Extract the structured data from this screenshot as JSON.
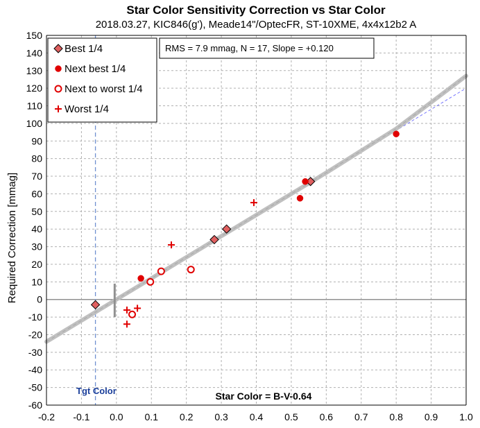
{
  "chart_data": {
    "type": "scatter",
    "title": "Star Color Sensitivity Correction vs Star Color",
    "subtitle": "2018.03.27, KIC846(g'), Meade14\"/OptecFR, ST-10XME, 4x4x12b2 A",
    "xlabel": "Star Color = B-V-0.64",
    "ylabel": "Required Correction [mmag]",
    "xlim": [
      -0.2,
      1.0
    ],
    "ylim": [
      -60,
      150
    ],
    "x_ticks": [
      "-0.2",
      "-0.1",
      "0.0",
      "0.1",
      "0.2",
      "0.3",
      "0.4",
      "0.5",
      "0.6",
      "0.7",
      "0.8",
      "0.9",
      "1.0"
    ],
    "y_ticks": [
      "150",
      "140",
      "130",
      "120",
      "110",
      "100",
      "90",
      "80",
      "70",
      "60",
      "50",
      "40",
      "30",
      "20",
      "10",
      "0",
      "-10",
      "-20",
      "-30",
      "-40",
      "-50",
      "-60"
    ],
    "grid": true,
    "legend_position": "top-left",
    "stats_text": "RMS = 7.9 mmag, N = 17, Slope = +0.120",
    "target_color_label": "Tgt Color",
    "target_color_x": -0.06,
    "colors": {
      "marker_red": "#e00000",
      "diamond_fill": "#e06060",
      "fit_line": "#c0c0c0",
      "linear_line": "#6a6aff",
      "target_line": "#7090d0",
      "target_label": "#1a3e9a"
    },
    "series": [
      {
        "name": "Best 1/4",
        "marker": "diamond",
        "points": [
          [
            -0.06,
            -3
          ],
          [
            0.28,
            34
          ],
          [
            0.315,
            40
          ],
          [
            0.555,
            67
          ]
        ]
      },
      {
        "name": "Next best 1/4",
        "marker": "filled-circle",
        "points": [
          [
            0.07,
            12
          ],
          [
            0.525,
            57.5
          ],
          [
            0.54,
            67
          ],
          [
            0.8,
            94
          ]
        ]
      },
      {
        "name": "Next to worst 1/4",
        "marker": "open-circle",
        "points": [
          [
            0.045,
            -8.5
          ],
          [
            0.097,
            10
          ],
          [
            0.128,
            16
          ],
          [
            0.213,
            17
          ]
        ]
      },
      {
        "name": "Worst 1/4",
        "marker": "plus",
        "points": [
          [
            0.03,
            -6
          ],
          [
            0.03,
            -14
          ],
          [
            0.06,
            -5
          ],
          [
            0.157,
            31
          ],
          [
            0.393,
            55
          ]
        ]
      }
    ],
    "fit_curve": {
      "points": [
        [
          -0.2,
          -24
        ],
        [
          0.0,
          0
        ],
        [
          0.2,
          24
        ],
        [
          0.4,
          48
        ],
        [
          0.6,
          72
        ],
        [
          0.8,
          97
        ],
        [
          1.0,
          127
        ]
      ]
    },
    "linear_line": {
      "points": [
        [
          0.5,
          60
        ],
        [
          1.0,
          120
        ]
      ]
    }
  }
}
